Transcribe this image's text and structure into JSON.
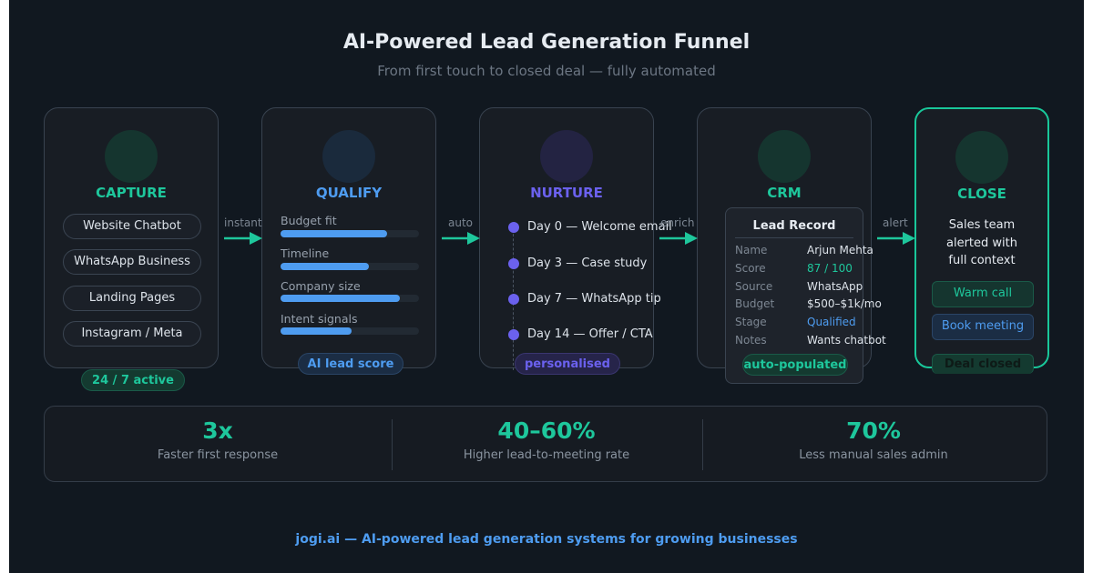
{
  "header": {
    "title": "AI-Powered Lead Generation Funnel",
    "subtitle": "From first touch to closed deal — fully automated"
  },
  "colors": {
    "green": "#1ec79c",
    "blue": "#4e9cf0",
    "purple": "#6b61ee",
    "background": "#111820"
  },
  "capture": {
    "title": "CAPTURE",
    "channels": [
      "Website Chatbot",
      "WhatsApp Business",
      "Landing Pages",
      "Instagram / Meta"
    ],
    "badge": "24 / 7 active"
  },
  "qualify": {
    "title": "QUALIFY",
    "signals": [
      {
        "label": "Budget fit",
        "level": 0.77
      },
      {
        "label": "Timeline",
        "level": 0.64
      },
      {
        "label": "Company size",
        "level": 0.86
      },
      {
        "label": "Intent signals",
        "level": 0.51
      }
    ],
    "badge": "AI lead score"
  },
  "nurture": {
    "title": "NURTURE",
    "steps": [
      "Day 0 — Welcome email",
      "Day 3 — Case study",
      "Day 7 — WhatsApp tip",
      "Day 14 — Offer / CTA"
    ],
    "badge": "personalised"
  },
  "crm": {
    "title": "CRM",
    "record_title": "Lead Record",
    "fields": [
      {
        "key": "Name",
        "value": "Arjun Mehta"
      },
      {
        "key": "Score",
        "value": "87 / 100"
      },
      {
        "key": "Source",
        "value": "WhatsApp"
      },
      {
        "key": "Budget",
        "value": "$500–$1k/mo"
      },
      {
        "key": "Stage",
        "value": "Qualified"
      },
      {
        "key": "Notes",
        "value": "Wants chatbot"
      }
    ],
    "badge": "auto-populated"
  },
  "close": {
    "title": "CLOSE",
    "text_lines": [
      "Sales team",
      "alerted with",
      "full context"
    ],
    "actions": [
      "Warm call",
      "Book meeting"
    ],
    "badge": "Deal closed"
  },
  "arrows": [
    "instant",
    "auto",
    "enrich",
    "alert"
  ],
  "stats": [
    {
      "value": "3x",
      "label": "Faster first response"
    },
    {
      "value": "40–60%",
      "label": "Higher lead-to-meeting rate"
    },
    {
      "value": "70%",
      "label": "Less manual sales admin"
    }
  ],
  "footer": "jogi.ai — AI-powered lead generation systems for growing businesses"
}
